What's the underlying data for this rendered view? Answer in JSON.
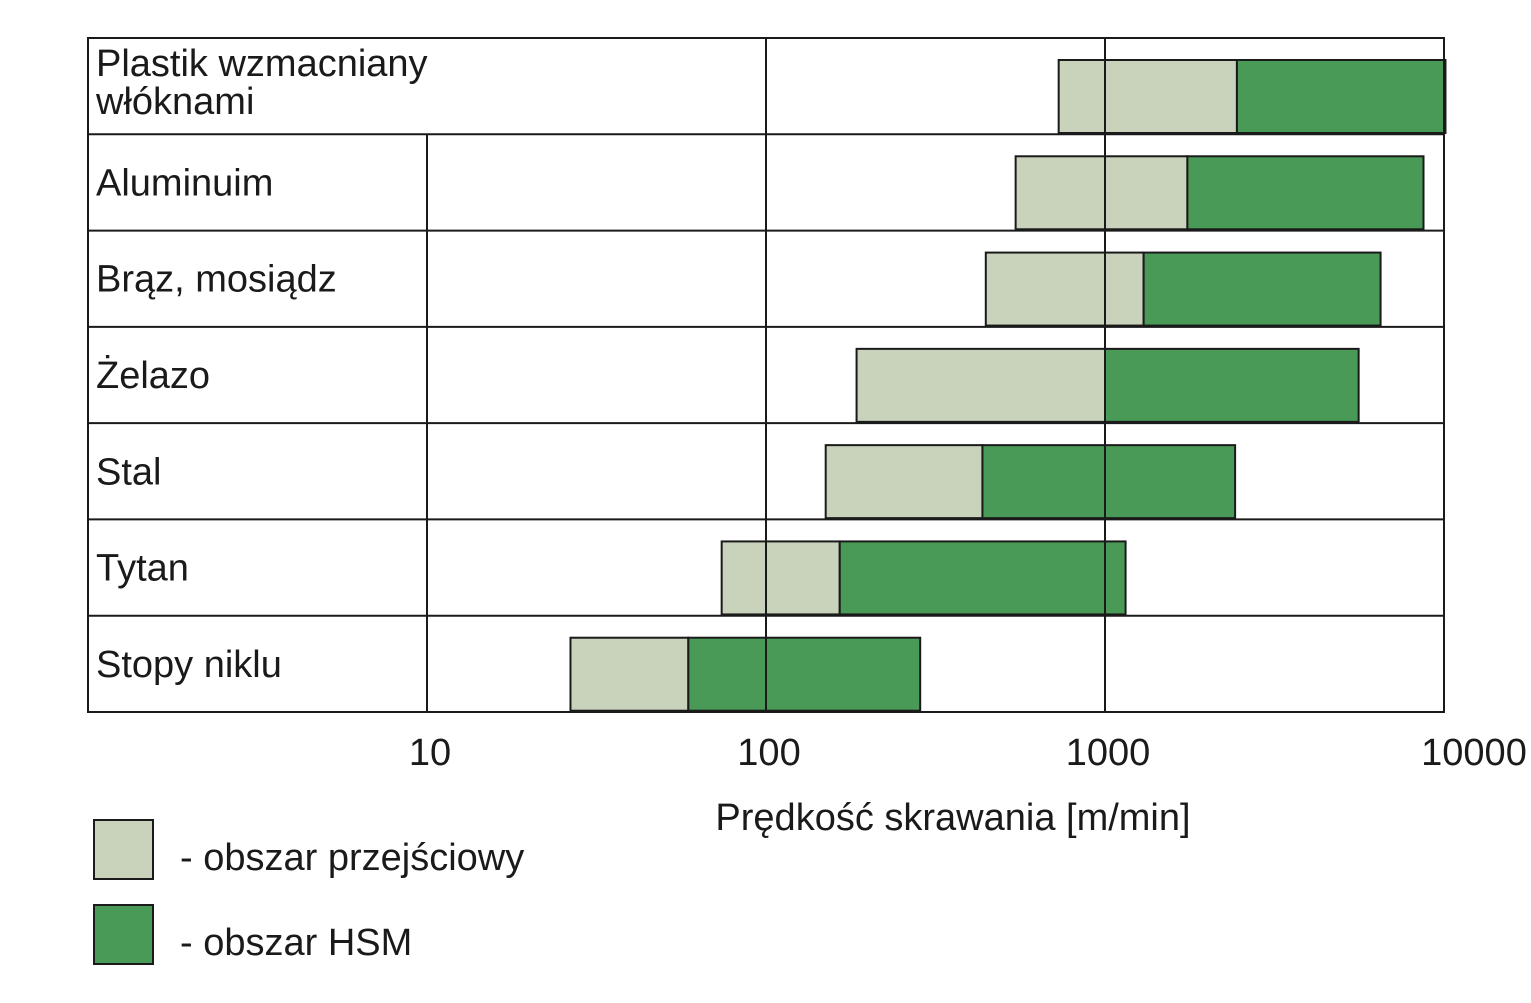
{
  "chart_data": {
    "type": "bar",
    "orientation": "horizontal",
    "subtype": "floating-range",
    "xscale": "log",
    "xlim": [
      1,
      10000
    ],
    "xlabel": "Prędkość skrawania [m/min]",
    "ticks": [
      {
        "value": 10,
        "label": "10"
      },
      {
        "value": 100,
        "label": "100"
      },
      {
        "value": 1000,
        "label": "1000"
      },
      {
        "value": 10000,
        "label": "10000"
      }
    ],
    "categories": [
      {
        "lines": [
          "Plastik wzmacniany",
          " włóknami"
        ],
        "transition": [
          730,
          2450
        ],
        "hsm": [
          2450,
          10100
        ]
      },
      {
        "lines": [
          "Aluminuim"
        ],
        "transition": [
          545,
          1750
        ],
        "hsm": [
          1750,
          8700
        ]
      },
      {
        "lines": [
          "Brąz, mosiądz"
        ],
        "transition": [
          445,
          1300
        ],
        "hsm": [
          1300,
          6500
        ]
      },
      {
        "lines": [
          "Żelazo"
        ],
        "transition": [
          185,
          1000
        ],
        "hsm": [
          1000,
          5600
        ]
      },
      {
        "lines": [
          "Stal"
        ],
        "transition": [
          150,
          435
        ],
        "hsm": [
          435,
          2420
        ]
      },
      {
        "lines": [
          "Tytan"
        ],
        "transition": [
          74,
          165
        ],
        "hsm": [
          165,
          1150
        ]
      },
      {
        "lines": [
          "Stopy niklu"
        ],
        "transition": [
          26.5,
          59
        ],
        "hsm": [
          59,
          285
        ]
      }
    ],
    "series": [
      {
        "key": "transition",
        "name": "- obszar przejściowy",
        "color": "#c9d3bb"
      },
      {
        "key": "hsm",
        "name": "- obszar HSM",
        "color": "#4a9a57"
      }
    ],
    "legend_position": "bottom-left"
  }
}
